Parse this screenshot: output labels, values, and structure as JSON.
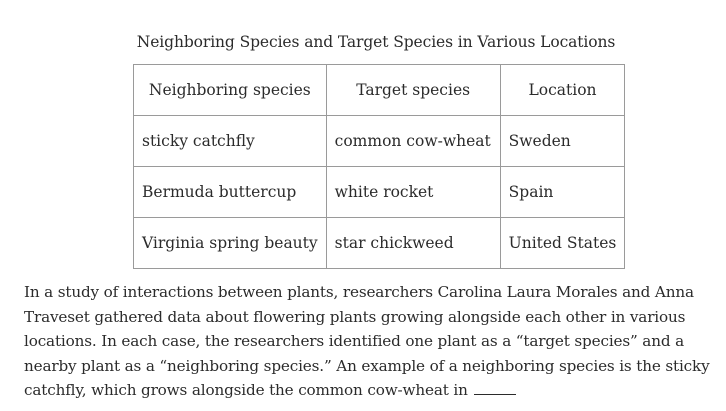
{
  "table": {
    "caption": "Neighboring Species and Target Species in Various Locations",
    "headers": [
      "Neighboring species",
      "Target species",
      "Location"
    ],
    "rows": [
      [
        "sticky catchfly",
        "common cow-wheat",
        "Sweden"
      ],
      [
        "Bermuda buttercup",
        "white rocket",
        "Spain"
      ],
      [
        "Virginia spring beauty",
        "star chickweed",
        "United States"
      ]
    ]
  },
  "passage": {
    "text": "In a study of interactions between plants, researchers Carolina Laura Morales and Anna Traveset gathered data about flowering plants growing alongside each other in various locations. In each case, the researchers identified one plant as a “target species” and a nearby plant as a “neighboring species.” An example of a neighboring species is the sticky catchfly, which grows alongside the common cow-wheat in"
  }
}
